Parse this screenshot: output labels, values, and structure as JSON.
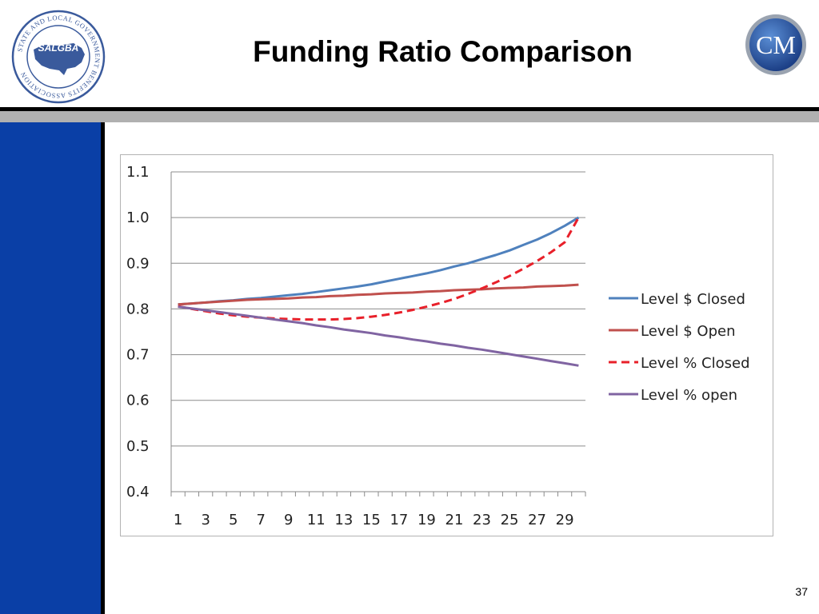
{
  "slide": {
    "title": "Funding Ratio Comparison",
    "page_number": "37"
  },
  "logos": {
    "left": {
      "name": "salgba-seal",
      "text": "SALGBA",
      "ring_text": "STATE AND LOCAL GOVERNMENT BENEFITS ASSOCIATION"
    },
    "right": {
      "name": "cm-logo",
      "text": "CM"
    }
  },
  "colors": {
    "sidebar": "#0a3fa6",
    "series_blue": "#4f81bd",
    "series_red": "#c0504d",
    "series_dashed_red": "#e8202a",
    "series_purple": "#8064a2"
  },
  "chart_data": {
    "type": "line",
    "title": "",
    "xlabel": "",
    "ylabel": "",
    "x": [
      1,
      2,
      3,
      4,
      5,
      6,
      7,
      8,
      9,
      10,
      11,
      12,
      13,
      14,
      15,
      16,
      17,
      18,
      19,
      20,
      21,
      22,
      23,
      24,
      25,
      26,
      27,
      28,
      29,
      30
    ],
    "x_tick_labels": [
      "1",
      "3",
      "5",
      "7",
      "9",
      "11",
      "13",
      "15",
      "17",
      "19",
      "21",
      "23",
      "25",
      "27",
      "29"
    ],
    "y_tick_labels": [
      "0.4",
      "0.5",
      "0.6",
      "0.7",
      "0.8",
      "0.9",
      "1.0",
      "1.1"
    ],
    "ylim": [
      0.4,
      1.1
    ],
    "grid": "horizontal",
    "legend_position": "right",
    "series": [
      {
        "name": "Level $ Closed",
        "color": "#4f81bd",
        "dash": false,
        "values": [
          0.81,
          0.812,
          0.814,
          0.817,
          0.819,
          0.822,
          0.824,
          0.827,
          0.83,
          0.833,
          0.837,
          0.841,
          0.845,
          0.849,
          0.854,
          0.86,
          0.866,
          0.872,
          0.878,
          0.885,
          0.893,
          0.9,
          0.909,
          0.918,
          0.928,
          0.94,
          0.952,
          0.966,
          0.982,
          1.0
        ]
      },
      {
        "name": "Level $ Open",
        "color": "#c0504d",
        "dash": false,
        "values": [
          0.81,
          0.812,
          0.814,
          0.816,
          0.818,
          0.82,
          0.821,
          0.822,
          0.823,
          0.825,
          0.826,
          0.828,
          0.829,
          0.831,
          0.832,
          0.834,
          0.835,
          0.836,
          0.838,
          0.839,
          0.841,
          0.842,
          0.843,
          0.845,
          0.846,
          0.847,
          0.849,
          0.85,
          0.851,
          0.853
        ]
      },
      {
        "name": "Level % Closed",
        "color": "#e8202a",
        "dash": true,
        "values": [
          0.806,
          0.8,
          0.795,
          0.79,
          0.786,
          0.783,
          0.781,
          0.779,
          0.778,
          0.777,
          0.777,
          0.777,
          0.778,
          0.78,
          0.783,
          0.787,
          0.792,
          0.798,
          0.805,
          0.813,
          0.822,
          0.833,
          0.845,
          0.858,
          0.872,
          0.888,
          0.905,
          0.924,
          0.946,
          1.0
        ]
      },
      {
        "name": "Level % open",
        "color": "#8064a2",
        "dash": false,
        "values": [
          0.805,
          0.801,
          0.797,
          0.793,
          0.789,
          0.785,
          0.781,
          0.777,
          0.773,
          0.769,
          0.764,
          0.76,
          0.755,
          0.751,
          0.747,
          0.742,
          0.738,
          0.733,
          0.729,
          0.724,
          0.72,
          0.715,
          0.711,
          0.706,
          0.701,
          0.696,
          0.691,
          0.686,
          0.681,
          0.676
        ]
      }
    ]
  }
}
